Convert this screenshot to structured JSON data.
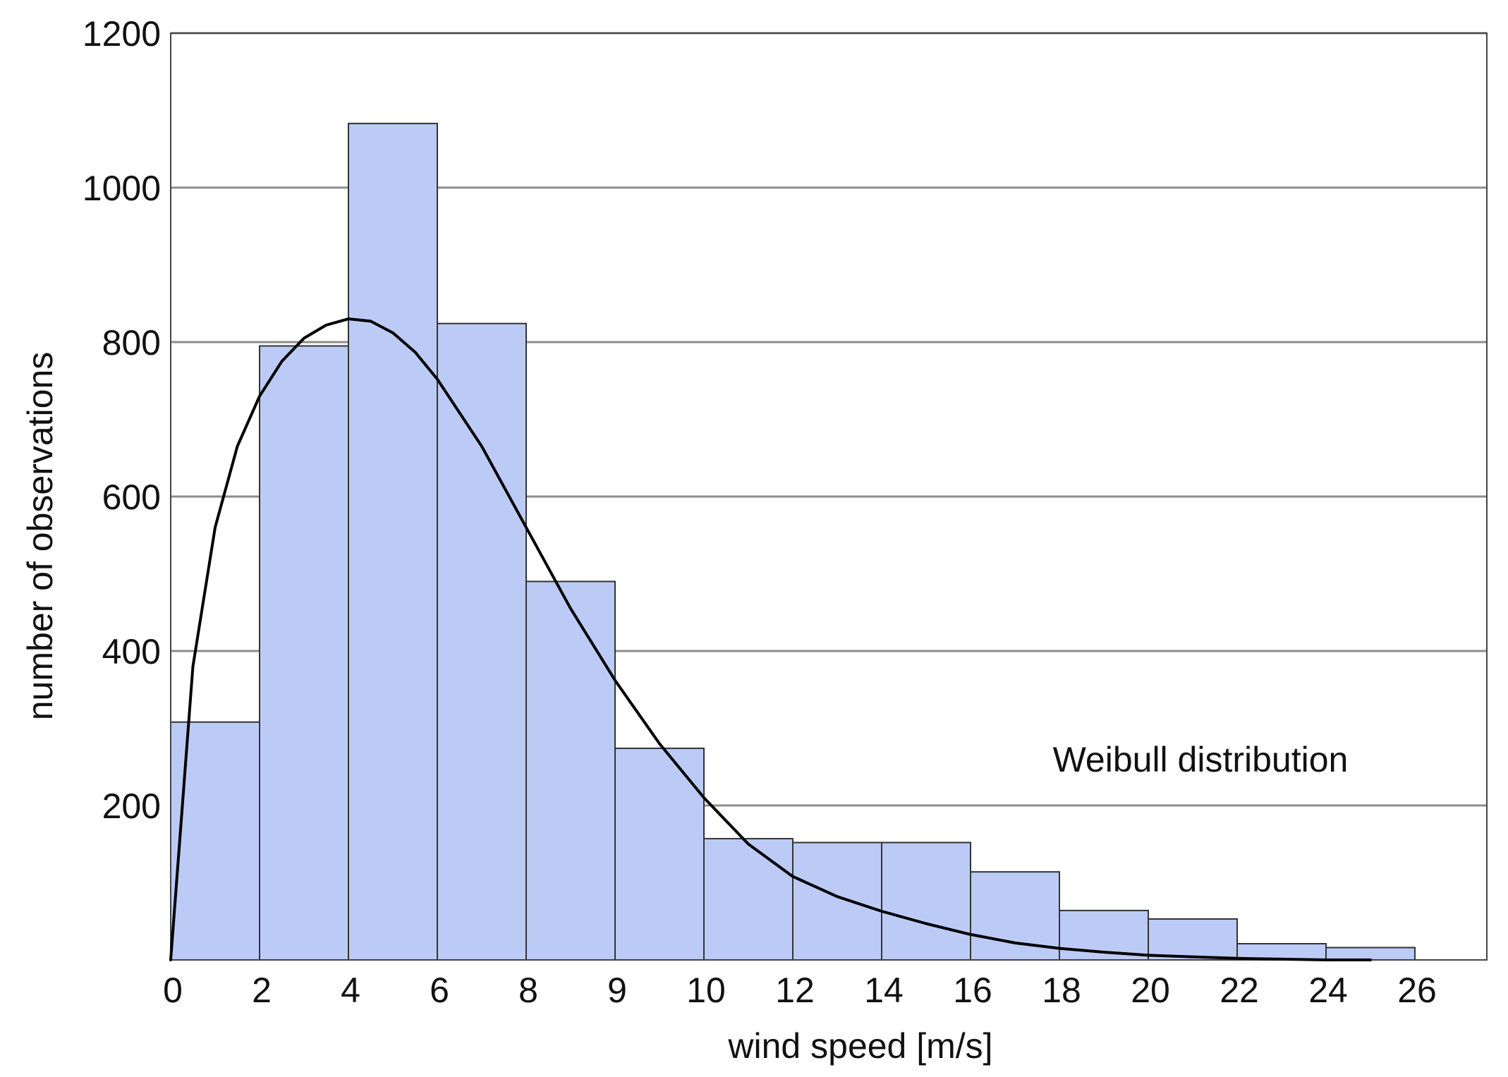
{
  "chart_data": {
    "type": "bar",
    "xlabel": "wind speed [m/s]",
    "ylabel": "number of observations",
    "ylim": [
      0,
      1200
    ],
    "yticks": [
      200,
      400,
      600,
      800,
      1000,
      1200
    ],
    "xticks": [
      "0",
      "2",
      "4",
      "6",
      "8",
      "9",
      "10",
      "12",
      "14",
      "16",
      "18",
      "20",
      "22",
      "24",
      "26"
    ],
    "grid": "horizontal",
    "bar_color": "#bccbf6",
    "bar_edge_color": "#333333",
    "values": [
      308,
      795,
      1083,
      824,
      490,
      274,
      157,
      152,
      152,
      114,
      64,
      53,
      21,
      16
    ],
    "series": [
      {
        "name": "Weibull distribution",
        "type": "line",
        "color": "#000000",
        "points": [
          [
            0,
            0
          ],
          [
            0.5,
            380
          ],
          [
            1,
            560
          ],
          [
            1.5,
            665
          ],
          [
            2,
            730
          ],
          [
            2.5,
            775
          ],
          [
            3,
            805
          ],
          [
            3.5,
            822
          ],
          [
            4,
            830
          ],
          [
            4.5,
            827
          ],
          [
            5,
            812
          ],
          [
            5.5,
            787
          ],
          [
            6,
            752
          ],
          [
            7,
            665
          ],
          [
            8,
            560
          ],
          [
            9,
            455
          ],
          [
            10,
            362
          ],
          [
            11,
            280
          ],
          [
            12,
            210
          ],
          [
            13,
            150
          ],
          [
            14,
            108
          ],
          [
            15,
            82
          ],
          [
            16,
            63
          ],
          [
            17,
            47
          ],
          [
            18,
            33
          ],
          [
            19,
            22
          ],
          [
            20,
            15
          ],
          [
            21,
            10
          ],
          [
            22,
            6
          ],
          [
            23,
            4
          ],
          [
            24,
            2
          ],
          [
            25,
            1
          ],
          [
            26,
            0
          ],
          [
            27,
            0
          ]
        ]
      }
    ],
    "annotations": [
      {
        "text": "Weibull distribution"
      }
    ]
  }
}
